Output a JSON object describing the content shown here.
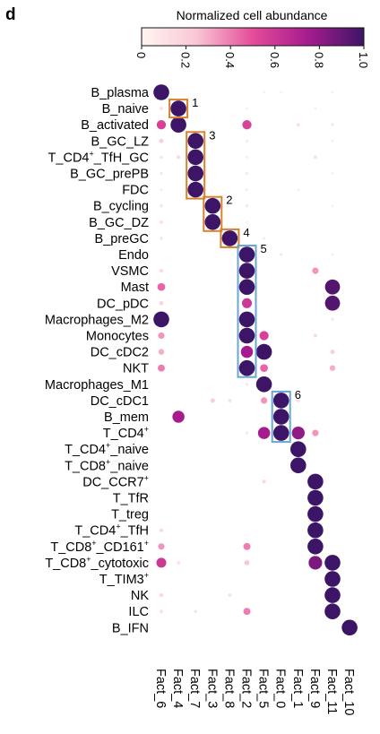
{
  "panel_letter": "d",
  "chart_data": {
    "type": "dot",
    "legend": {
      "title": "Normalized cell abundance",
      "ticks": [
        "0",
        "0.2",
        "0.4",
        "0.6",
        "0.8",
        "1.0"
      ],
      "range": [
        0,
        1
      ],
      "colors": [
        "#fff5f0",
        "#f9c6d5",
        "#e44c9a",
        "#a51c8e",
        "#3d1566"
      ]
    },
    "factors": [
      "Fact_6",
      "Fact_4",
      "Fact_7",
      "Fact_3",
      "Fact_8",
      "Fact_2",
      "Fact_5",
      "Fact_0",
      "Fact_1",
      "Fact_9",
      "Fact_11",
      "Fact_10"
    ],
    "rows": [
      {
        "name": "B_plasma",
        "sup": []
      },
      {
        "name": "B_naive",
        "sup": []
      },
      {
        "name": "B_activated",
        "sup": []
      },
      {
        "name": "B_GC_LZ",
        "sup": []
      },
      {
        "name": "T_CD4+_TfH_GC",
        "sup": [
          [
            "T_CD4",
            ""
          ],
          [
            "+",
            "s"
          ],
          [
            "_TfH_GC",
            ""
          ]
        ]
      },
      {
        "name": "B_GC_prePB",
        "sup": []
      },
      {
        "name": "FDC",
        "sup": []
      },
      {
        "name": "B_cycling",
        "sup": []
      },
      {
        "name": "B_GC_DZ",
        "sup": []
      },
      {
        "name": "B_preGC",
        "sup": []
      },
      {
        "name": "Endo",
        "sup": []
      },
      {
        "name": "VSMC",
        "sup": []
      },
      {
        "name": "Mast",
        "sup": []
      },
      {
        "name": "DC_pDC",
        "sup": []
      },
      {
        "name": "Macrophages_M2",
        "sup": []
      },
      {
        "name": "Monocytes",
        "sup": []
      },
      {
        "name": "DC_cDC2",
        "sup": []
      },
      {
        "name": "NKT",
        "sup": []
      },
      {
        "name": "Macrophages_M1",
        "sup": []
      },
      {
        "name": "DC_cDC1",
        "sup": []
      },
      {
        "name": "B_mem",
        "sup": []
      },
      {
        "name": "T_CD4+",
        "sup": [
          [
            "T_CD4",
            ""
          ],
          [
            "+",
            "s"
          ]
        ]
      },
      {
        "name": "T_CD4+_naive",
        "sup": [
          [
            "T_CD4",
            ""
          ],
          [
            "+",
            "s"
          ],
          [
            "_naive",
            ""
          ]
        ]
      },
      {
        "name": "T_CD8+_naive",
        "sup": [
          [
            "T_CD8",
            ""
          ],
          [
            "+",
            "s"
          ],
          [
            "_naive",
            ""
          ]
        ]
      },
      {
        "name": "DC_CCR7+",
        "sup": [
          [
            "DC_CCR7",
            ""
          ],
          [
            "+",
            "s"
          ]
        ]
      },
      {
        "name": "T_TfR",
        "sup": []
      },
      {
        "name": "T_treg",
        "sup": []
      },
      {
        "name": "T_CD4+_TfH",
        "sup": [
          [
            "T_CD4",
            ""
          ],
          [
            "+",
            "s"
          ],
          [
            "_TfH",
            ""
          ]
        ]
      },
      {
        "name": "T_CD8+_CD161+",
        "sup": [
          [
            "T_CD8",
            ""
          ],
          [
            "+",
            "s"
          ],
          [
            "_CD161",
            ""
          ],
          [
            "+",
            "s"
          ]
        ]
      },
      {
        "name": "T_CD8+_cytotoxic",
        "sup": [
          [
            "T_CD8",
            ""
          ],
          [
            "+",
            "s"
          ],
          [
            "_cytotoxic",
            ""
          ]
        ]
      },
      {
        "name": "T_TIM3+",
        "sup": [
          [
            "T_TIM3",
            ""
          ],
          [
            "+",
            "s"
          ]
        ]
      },
      {
        "name": "NK",
        "sup": []
      },
      {
        "name": "ILC",
        "sup": []
      },
      {
        "name": "B_IFN",
        "sup": []
      }
    ],
    "points": [
      [
        0,
        0,
        1.0
      ],
      [
        0,
        6,
        0.05
      ],
      [
        0,
        7,
        0.04
      ],
      [
        0,
        10,
        0.04
      ],
      [
        1,
        0,
        0.12
      ],
      [
        1,
        1,
        1.0
      ],
      [
        1,
        5,
        0.04
      ],
      [
        1,
        9,
        0.05
      ],
      [
        2,
        0,
        0.55
      ],
      [
        2,
        1,
        1.0
      ],
      [
        2,
        5,
        0.55
      ],
      [
        2,
        8,
        0.12
      ],
      [
        2,
        10,
        0.08
      ],
      [
        3,
        0,
        0.2
      ],
      [
        3,
        2,
        1.0
      ],
      [
        3,
        5,
        0.08
      ],
      [
        3,
        10,
        0.05
      ],
      [
        4,
        0,
        0.1
      ],
      [
        4,
        1,
        0.15
      ],
      [
        4,
        2,
        1.0
      ],
      [
        4,
        5,
        0.05
      ],
      [
        4,
        9,
        0.12
      ],
      [
        5,
        0,
        0.08
      ],
      [
        5,
        2,
        1.0
      ],
      [
        5,
        5,
        0.08
      ],
      [
        5,
        10,
        0.05
      ],
      [
        6,
        0,
        0.05
      ],
      [
        6,
        2,
        1.0
      ],
      [
        6,
        5,
        0.05
      ],
      [
        6,
        8,
        0.05
      ],
      [
        7,
        0,
        0.1
      ],
      [
        7,
        3,
        1.0
      ],
      [
        7,
        5,
        0.08
      ],
      [
        7,
        10,
        0.05
      ],
      [
        8,
        0,
        0.12
      ],
      [
        8,
        3,
        1.0
      ],
      [
        8,
        5,
        0.05
      ],
      [
        9,
        0,
        0.1
      ],
      [
        9,
        4,
        1.0
      ],
      [
        9,
        6,
        0.06
      ],
      [
        10,
        5,
        1.0
      ],
      [
        10,
        7,
        0.08
      ],
      [
        10,
        10,
        0.05
      ],
      [
        11,
        0,
        0.15
      ],
      [
        11,
        5,
        1.0
      ],
      [
        11,
        9,
        0.35
      ],
      [
        12,
        0,
        0.45
      ],
      [
        12,
        5,
        1.0
      ],
      [
        12,
        10,
        0.95
      ],
      [
        13,
        0,
        0.18
      ],
      [
        13,
        5,
        0.6
      ],
      [
        13,
        10,
        0.95
      ],
      [
        14,
        0,
        1.0
      ],
      [
        14,
        5,
        1.0
      ],
      [
        14,
        10,
        0.08
      ],
      [
        15,
        0,
        0.35
      ],
      [
        15,
        5,
        1.0
      ],
      [
        15,
        6,
        0.55
      ],
      [
        15,
        9,
        0.15
      ],
      [
        16,
        0,
        0.3
      ],
      [
        16,
        5,
        0.75
      ],
      [
        16,
        6,
        1.0
      ],
      [
        16,
        10,
        0.2
      ],
      [
        17,
        0,
        0.4
      ],
      [
        17,
        5,
        1.0
      ],
      [
        17,
        6,
        0.45
      ],
      [
        17,
        10,
        0.3
      ],
      [
        18,
        5,
        0.08
      ],
      [
        18,
        6,
        1.0
      ],
      [
        19,
        3,
        0.2
      ],
      [
        19,
        4,
        0.12
      ],
      [
        19,
        6,
        0.35
      ],
      [
        19,
        7,
        1.0
      ],
      [
        19,
        8,
        0.12
      ],
      [
        20,
        1,
        0.75
      ],
      [
        20,
        7,
        1.0
      ],
      [
        21,
        5,
        0.08
      ],
      [
        21,
        6,
        0.75
      ],
      [
        21,
        7,
        1.0
      ],
      [
        21,
        8,
        0.8
      ],
      [
        21,
        9,
        0.35
      ],
      [
        22,
        8,
        1.0
      ],
      [
        23,
        8,
        1.0
      ],
      [
        24,
        6,
        0.15
      ],
      [
        24,
        9,
        1.0
      ],
      [
        25,
        9,
        1.0
      ],
      [
        26,
        9,
        1.0
      ],
      [
        27,
        0,
        0.15
      ],
      [
        27,
        9,
        1.0
      ],
      [
        28,
        0,
        0.35
      ],
      [
        28,
        5,
        0.4
      ],
      [
        28,
        9,
        1.0
      ],
      [
        29,
        0,
        0.6
      ],
      [
        29,
        1,
        0.12
      ],
      [
        29,
        5,
        0.25
      ],
      [
        29,
        9,
        0.85
      ],
      [
        29,
        10,
        1.0
      ],
      [
        30,
        10,
        1.0
      ],
      [
        31,
        0,
        0.15
      ],
      [
        31,
        4,
        0.12
      ],
      [
        31,
        10,
        1.0
      ],
      [
        32,
        0,
        0.12
      ],
      [
        32,
        2,
        0.1
      ],
      [
        32,
        5,
        0.4
      ],
      [
        32,
        10,
        1.0
      ],
      [
        33,
        11,
        1.0
      ]
    ],
    "boxes": [
      {
        "label": "1",
        "rows": [
          1,
          1
        ],
        "cols": [
          1,
          1
        ],
        "color": "#d9822b"
      },
      {
        "label": "3",
        "rows": [
          3,
          6
        ],
        "cols": [
          2,
          2
        ],
        "color": "#d9822b"
      },
      {
        "label": "2",
        "rows": [
          7,
          8
        ],
        "cols": [
          3,
          3
        ],
        "color": "#d9822b"
      },
      {
        "label": "4",
        "rows": [
          9,
          9
        ],
        "cols": [
          4,
          4
        ],
        "color": "#d9822b"
      },
      {
        "label": "5",
        "rows": [
          10,
          17
        ],
        "cols": [
          5,
          5
        ],
        "color": "#6aa6d6"
      },
      {
        "label": "6",
        "rows": [
          19,
          21
        ],
        "cols": [
          7,
          7
        ],
        "color": "#6aa6d6"
      }
    ]
  }
}
